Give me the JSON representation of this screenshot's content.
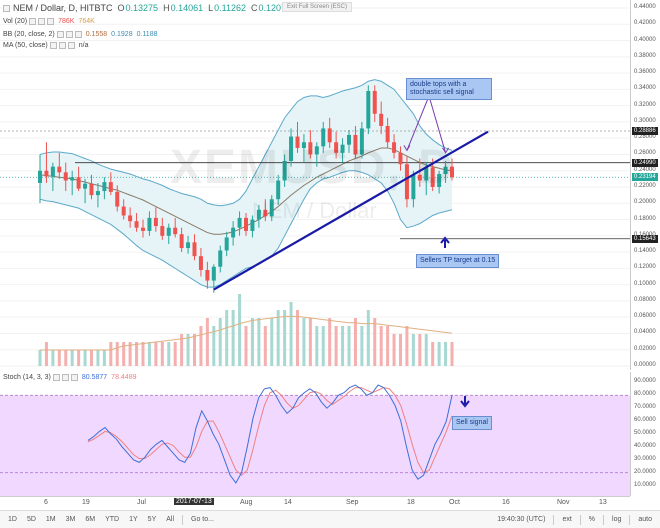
{
  "symbol": {
    "title": "NEM / Dollar, D, HITBTC",
    "ohlc": [
      {
        "label": "O",
        "value": "0.13275"
      },
      {
        "label": "H",
        "value": "0.14061"
      },
      {
        "label": "L",
        "value": "0.11262"
      },
      {
        "label": "C",
        "value": "0.12078"
      }
    ]
  },
  "toolbar_top": {
    "exit_fullscreen": "Exit Full Screen (ESC)"
  },
  "indicators": {
    "vol": {
      "label": "Vol (20)",
      "v1": "786K",
      "v2": "764K"
    },
    "bb": {
      "label": "BB (20, close, 2)",
      "v1": "0.1558",
      "v2": "0.1928",
      "v3": "0.1188"
    },
    "ma": {
      "label": "MA (50, close)",
      "v1": "n/a"
    },
    "stoch": {
      "label": "Stoch (14, 3, 3)",
      "v1": "80.5877",
      "v2": "78.4489"
    }
  },
  "watermark": {
    "main": "XEMUSD, D",
    "sub": "NEM / Dollar"
  },
  "price_axis": {
    "labels": [
      "0.44000",
      "0.42000",
      "0.40000",
      "0.38000",
      "0.36000",
      "0.34000",
      "0.32000",
      "0.30000",
      "0.28000",
      "0.26000",
      "0.24000",
      "0.22000",
      "0.20000",
      "0.18000",
      "0.16000",
      "0.14000",
      "0.12000",
      "0.10000",
      "0.08000",
      "0.06000",
      "0.04000",
      "0.02000",
      "0.00000"
    ],
    "tags": [
      {
        "text": "0.28886",
        "value": 0.28886,
        "color": "#222222"
      },
      {
        "text": "0.24990",
        "value": 0.2499,
        "color": "#222222"
      },
      {
        "text": "0.23194",
        "value": 0.23194,
        "color": "#26a69a"
      },
      {
        "text": "0.15643",
        "value": 0.15643,
        "color": "#222222"
      }
    ]
  },
  "stoch_axis": {
    "labels": [
      "90.0000",
      "80.0000",
      "70.0000",
      "60.0000",
      "50.0000",
      "40.0000",
      "30.0000",
      "20.0000",
      "10.0000"
    ]
  },
  "time_axis": {
    "labels": [
      "6",
      "19",
      "Jul",
      "2017-07-13",
      "Aug",
      "14",
      "Sep",
      "18",
      "Oct",
      "16",
      "Nov",
      "13"
    ]
  },
  "annotations": {
    "double_tops": "double tops with a stochastic sell signal",
    "sellers_tp": "Sellers TP target at 0.15",
    "sell_signal": "Sell signal"
  },
  "bottom_toolbar": {
    "ranges": [
      "1D",
      "5D",
      "1M",
      "3M",
      "6M",
      "YTD",
      "1Y",
      "5Y",
      "All",
      "Go to..."
    ],
    "clock": "19:40:30 (UTC)",
    "right_buttons": [
      "ext",
      "%",
      "log",
      "auto"
    ]
  },
  "colors": {
    "bull": "#26a69a",
    "bear": "#ef5350",
    "trendline": "#1a1aa8",
    "bb_fill": "#e6f4f8",
    "bb_line": "#5ca9c9",
    "ma_line": "#8a7a66",
    "stoch_bg": "#f0d8ff",
    "stoch_k": "#3d6fd6",
    "stoch_d": "#f08080"
  },
  "chart_data": {
    "type": "candlestick",
    "price_range": [
      0.0,
      0.44
    ],
    "candles": [
      [
        0.225,
        0.26,
        0.2,
        0.24
      ],
      [
        0.24,
        0.275,
        0.225,
        0.233
      ],
      [
        0.233,
        0.25,
        0.215,
        0.245
      ],
      [
        0.245,
        0.262,
        0.23,
        0.238
      ],
      [
        0.238,
        0.25,
        0.215,
        0.228
      ],
      [
        0.228,
        0.24,
        0.21,
        0.232
      ],
      [
        0.232,
        0.245,
        0.215,
        0.218
      ],
      [
        0.218,
        0.23,
        0.2,
        0.224
      ],
      [
        0.224,
        0.235,
        0.205,
        0.21
      ],
      [
        0.21,
        0.225,
        0.195,
        0.215
      ],
      [
        0.215,
        0.232,
        0.205,
        0.226
      ],
      [
        0.226,
        0.238,
        0.21,
        0.214
      ],
      [
        0.214,
        0.222,
        0.19,
        0.196
      ],
      [
        0.196,
        0.205,
        0.18,
        0.185
      ],
      [
        0.185,
        0.195,
        0.17,
        0.178
      ],
      [
        0.178,
        0.188,
        0.165,
        0.17
      ],
      [
        0.17,
        0.18,
        0.158,
        0.166
      ],
      [
        0.166,
        0.19,
        0.16,
        0.182
      ],
      [
        0.182,
        0.195,
        0.165,
        0.172
      ],
      [
        0.172,
        0.182,
        0.155,
        0.16
      ],
      [
        0.16,
        0.175,
        0.15,
        0.17
      ],
      [
        0.17,
        0.182,
        0.158,
        0.162
      ],
      [
        0.162,
        0.17,
        0.14,
        0.145
      ],
      [
        0.145,
        0.16,
        0.138,
        0.152
      ],
      [
        0.152,
        0.162,
        0.13,
        0.135
      ],
      [
        0.135,
        0.145,
        0.11,
        0.118
      ],
      [
        0.118,
        0.128,
        0.095,
        0.105
      ],
      [
        0.105,
        0.125,
        0.09,
        0.122
      ],
      [
        0.122,
        0.148,
        0.115,
        0.142
      ],
      [
        0.142,
        0.165,
        0.135,
        0.158
      ],
      [
        0.158,
        0.178,
        0.148,
        0.17
      ],
      [
        0.17,
        0.19,
        0.16,
        0.182
      ],
      [
        0.182,
        0.188,
        0.16,
        0.166
      ],
      [
        0.166,
        0.185,
        0.158,
        0.18
      ],
      [
        0.18,
        0.198,
        0.17,
        0.192
      ],
      [
        0.192,
        0.205,
        0.178,
        0.184
      ],
      [
        0.184,
        0.21,
        0.178,
        0.205
      ],
      [
        0.205,
        0.235,
        0.198,
        0.228
      ],
      [
        0.228,
        0.26,
        0.22,
        0.252
      ],
      [
        0.252,
        0.292,
        0.245,
        0.282
      ],
      [
        0.282,
        0.3,
        0.262,
        0.268
      ],
      [
        0.268,
        0.285,
        0.25,
        0.275
      ],
      [
        0.275,
        0.29,
        0.255,
        0.26
      ],
      [
        0.26,
        0.275,
        0.245,
        0.27
      ],
      [
        0.27,
        0.3,
        0.262,
        0.292
      ],
      [
        0.292,
        0.305,
        0.268,
        0.275
      ],
      [
        0.275,
        0.288,
        0.255,
        0.262
      ],
      [
        0.262,
        0.28,
        0.25,
        0.272
      ],
      [
        0.272,
        0.29,
        0.262,
        0.284
      ],
      [
        0.284,
        0.295,
        0.255,
        0.26
      ],
      [
        0.26,
        0.3,
        0.255,
        0.292
      ],
      [
        0.292,
        0.345,
        0.285,
        0.338
      ],
      [
        0.338,
        0.345,
        0.3,
        0.31
      ],
      [
        0.31,
        0.325,
        0.285,
        0.295
      ],
      [
        0.295,
        0.305,
        0.268,
        0.275
      ],
      [
        0.275,
        0.285,
        0.255,
        0.262
      ],
      [
        0.262,
        0.27,
        0.24,
        0.248
      ],
      [
        0.248,
        0.258,
        0.195,
        0.205
      ],
      [
        0.205,
        0.24,
        0.195,
        0.235
      ],
      [
        0.235,
        0.255,
        0.22,
        0.228
      ],
      [
        0.228,
        0.25,
        0.21,
        0.244
      ],
      [
        0.244,
        0.255,
        0.215,
        0.22
      ],
      [
        0.22,
        0.24,
        0.212,
        0.236
      ],
      [
        0.236,
        0.252,
        0.225,
        0.245
      ],
      [
        0.245,
        0.255,
        0.228,
        0.232
      ]
    ],
    "volumes": [
      0.02,
      0.03,
      0.02,
      0.02,
      0.02,
      0.02,
      0.02,
      0.02,
      0.02,
      0.02,
      0.02,
      0.03,
      0.03,
      0.03,
      0.03,
      0.03,
      0.03,
      0.03,
      0.03,
      0.03,
      0.03,
      0.03,
      0.04,
      0.04,
      0.04,
      0.05,
      0.06,
      0.05,
      0.06,
      0.07,
      0.07,
      0.09,
      0.05,
      0.06,
      0.06,
      0.05,
      0.06,
      0.07,
      0.07,
      0.08,
      0.07,
      0.06,
      0.06,
      0.05,
      0.05,
      0.06,
      0.05,
      0.05,
      0.05,
      0.06,
      0.05,
      0.07,
      0.06,
      0.05,
      0.05,
      0.04,
      0.04,
      0.05,
      0.04,
      0.04,
      0.04,
      0.03,
      0.03,
      0.03,
      0.03
    ],
    "volume_avg": [
      0.02,
      0.02,
      0.02,
      0.02,
      0.02,
      0.02,
      0.02,
      0.02,
      0.02,
      0.02,
      0.02,
      0.02,
      0.023,
      0.025,
      0.026,
      0.027,
      0.028,
      0.029,
      0.03,
      0.031,
      0.032,
      0.033,
      0.034,
      0.035,
      0.037,
      0.039,
      0.041,
      0.043,
      0.045,
      0.048,
      0.05,
      0.053,
      0.055,
      0.057,
      0.058,
      0.059,
      0.06,
      0.061,
      0.062,
      0.062,
      0.062,
      0.061,
      0.06,
      0.059,
      0.058,
      0.057,
      0.056,
      0.055,
      0.054,
      0.054,
      0.053,
      0.053,
      0.053,
      0.052,
      0.051,
      0.05,
      0.049,
      0.048,
      0.047,
      0.046,
      0.045,
      0.044,
      0.043,
      0.042,
      0.041
    ],
    "bb_upper": [
      0.26,
      0.262,
      0.263,
      0.263,
      0.262,
      0.261,
      0.258,
      0.255,
      0.252,
      0.248,
      0.245,
      0.242,
      0.24,
      0.238,
      0.236,
      0.233,
      0.23,
      0.228,
      0.225,
      0.222,
      0.218,
      0.215,
      0.212,
      0.21,
      0.208,
      0.205,
      0.2,
      0.198,
      0.197,
      0.198,
      0.2,
      0.205,
      0.215,
      0.23,
      0.245,
      0.26,
      0.275,
      0.29,
      0.305,
      0.315,
      0.325,
      0.33,
      0.332,
      0.332,
      0.33,
      0.332,
      0.335,
      0.338,
      0.34,
      0.342,
      0.345,
      0.35,
      0.352,
      0.35,
      0.345,
      0.34,
      0.33,
      0.32,
      0.31,
      0.295,
      0.285,
      0.278,
      0.272,
      0.268,
      0.265
    ],
    "bb_lower": [
      0.205,
      0.203,
      0.202,
      0.2,
      0.198,
      0.196,
      0.194,
      0.19,
      0.186,
      0.182,
      0.178,
      0.174,
      0.168,
      0.162,
      0.155,
      0.148,
      0.142,
      0.138,
      0.134,
      0.13,
      0.125,
      0.12,
      0.115,
      0.11,
      0.105,
      0.1,
      0.097,
      0.097,
      0.1,
      0.105,
      0.11,
      0.115,
      0.12,
      0.122,
      0.125,
      0.13,
      0.135,
      0.145,
      0.16,
      0.175,
      0.19,
      0.205,
      0.218,
      0.225,
      0.23,
      0.232,
      0.235,
      0.238,
      0.24,
      0.24,
      0.238,
      0.235,
      0.23,
      0.225,
      0.215,
      0.2,
      0.18,
      0.17,
      0.172,
      0.175,
      0.18,
      0.185,
      0.188,
      0.19,
      0.192
    ],
    "ma": [
      0.235,
      0.234,
      0.233,
      0.232,
      0.231,
      0.23,
      0.228,
      0.226,
      0.224,
      0.222,
      0.22,
      0.218,
      0.216,
      0.213,
      0.21,
      0.207,
      0.204,
      0.2,
      0.196,
      0.192,
      0.188,
      0.184,
      0.18,
      0.176,
      0.172,
      0.168,
      0.164,
      0.162,
      0.162,
      0.163,
      0.165,
      0.168,
      0.172,
      0.176,
      0.18,
      0.185,
      0.19,
      0.196,
      0.203,
      0.21,
      0.216,
      0.222,
      0.227,
      0.232,
      0.236,
      0.24,
      0.244,
      0.248,
      0.252,
      0.255,
      0.258,
      0.262,
      0.265,
      0.268,
      0.268,
      0.266,
      0.262,
      0.258,
      0.254,
      0.25,
      0.247,
      0.245,
      0.243,
      0.241,
      0.24
    ],
    "stoch_k": [
      45,
      48,
      52,
      55,
      50,
      46,
      40,
      35,
      30,
      28,
      32,
      38,
      42,
      45,
      40,
      35,
      30,
      28,
      35,
      55,
      68,
      60,
      50,
      42,
      30,
      18,
      12,
      20,
      40,
      62,
      78,
      85,
      86,
      80,
      72,
      66,
      70,
      78,
      82,
      85,
      82,
      75,
      70,
      74,
      80,
      82,
      86,
      88,
      85,
      80,
      82,
      88,
      86,
      80,
      72,
      60,
      40,
      22,
      15,
      18,
      30,
      42,
      50,
      60,
      80
    ],
    "stoch_d": [
      44,
      46,
      49,
      52,
      51,
      48,
      44,
      39,
      34,
      31,
      31,
      34,
      38,
      42,
      43,
      41,
      36,
      32,
      32,
      40,
      52,
      60,
      60,
      52,
      42,
      32,
      22,
      18,
      22,
      38,
      56,
      72,
      82,
      84,
      80,
      74,
      70,
      72,
      77,
      82,
      83,
      81,
      76,
      73,
      76,
      79,
      83,
      86,
      86,
      84,
      82,
      84,
      86,
      85,
      80,
      72,
      58,
      42,
      28,
      20,
      22,
      32,
      42,
      52,
      64
    ],
    "levels": {
      "resistance": 0.2499,
      "support": 0.15643,
      "upper_ref": 0.28886,
      "last": 0.23194
    }
  }
}
